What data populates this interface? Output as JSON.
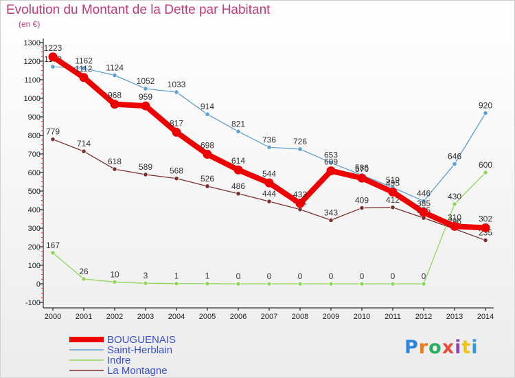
{
  "chart_data": {
    "type": "line",
    "title": "Evolution du Montant de la Dette par Habitant",
    "subtitle": "(en €)",
    "categories": [
      "2000",
      "2001",
      "2002",
      "2003",
      "2004",
      "2005",
      "2006",
      "2007",
      "2008",
      "2009",
      "2010",
      "2011",
      "2012",
      "2013",
      "2014"
    ],
    "ylim": [
      -100,
      1300
    ],
    "yticks": [
      -100,
      0,
      100,
      200,
      300,
      400,
      500,
      600,
      700,
      800,
      900,
      1000,
      1100,
      1200,
      1300
    ],
    "grid": false,
    "legend_position": "bottom-left",
    "series": [
      {
        "name": "La Montagne",
        "color": "#7a2e2e",
        "values": [
          779,
          714,
          618,
          589,
          568,
          526,
          486,
          444,
          401,
          343,
          409,
          412,
          355,
          296,
          235
        ]
      },
      {
        "name": "Indre",
        "color": "#8fd65a",
        "values": [
          167,
          26,
          10,
          3,
          1,
          1,
          0,
          0,
          0,
          0,
          0,
          0,
          0,
          430,
          600
        ]
      },
      {
        "name": "Saint-Herblain",
        "color": "#5f9fd3",
        "values": [
          1170,
          1162,
          1124,
          1052,
          1033,
          914,
          821,
          736,
          726,
          653,
          586,
          519,
          446,
          646,
          920
        ]
      },
      {
        "name": "BOUGUENAIS",
        "color": "#ee0000",
        "values": [
          1223,
          1112,
          968,
          959,
          817,
          698,
          614,
          544,
          433,
          609,
          570,
          495,
          385,
          310,
          302
        ]
      }
    ]
  },
  "logo": "Proxiti"
}
